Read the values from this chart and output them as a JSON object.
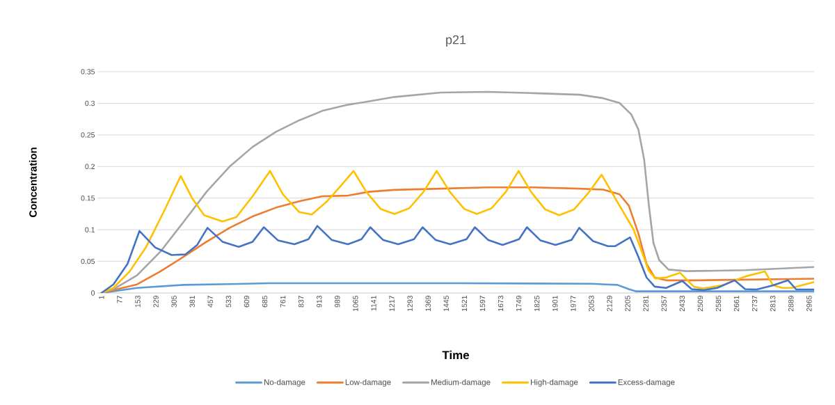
{
  "chart_data": {
    "type": "line",
    "title": "p21",
    "xlabel": "Time",
    "ylabel": "Concentration",
    "xlim": [
      -16,
      2986
    ],
    "ylim": [
      0,
      0.35
    ],
    "xticks": [
      1,
      77,
      153,
      229,
      305,
      381,
      457,
      533,
      609,
      685,
      761,
      837,
      913,
      989,
      1065,
      1141,
      1217,
      1293,
      1369,
      1445,
      1521,
      1597,
      1673,
      1749,
      1825,
      1901,
      1977,
      2053,
      2129,
      2205,
      2281,
      2357,
      2433,
      2509,
      2585,
      2661,
      2737,
      2813,
      2889,
      2965
    ],
    "yticks": [
      0,
      0.05,
      0.1,
      0.15,
      0.2,
      0.25,
      0.3,
      0.35
    ],
    "grid": "y",
    "legend": "bottom",
    "marker": "none",
    "line_style": "solid",
    "series": [
      {
        "name": "No-damage",
        "color": "#5b9bd5",
        "x": [
          1,
          150,
          344,
          538,
          700,
          1000,
          1500,
          2054,
          2113,
          2162,
          2210,
          2240,
          2500,
          2984
        ],
        "values": [
          0,
          0.008,
          0.0128,
          0.014,
          0.0154,
          0.0154,
          0.0154,
          0.0146,
          0.0135,
          0.0128,
          0.006,
          0.0026,
          0.0026,
          0.0026
        ]
      },
      {
        "name": "Low-damage",
        "color": "#ed7d31",
        "x": [
          1,
          150,
          247,
          344,
          441,
          538,
          634,
          732,
          829,
          926,
          1034,
          1120,
          1228,
          1422,
          1617,
          1811,
          2005,
          2103,
          2171,
          2210,
          2250,
          2284,
          2318,
          2366,
          2500,
          2984
        ],
        "values": [
          0,
          0.0135,
          0.034,
          0.057,
          0.081,
          0.103,
          0.121,
          0.135,
          0.145,
          0.153,
          0.154,
          0.16,
          0.163,
          0.165,
          0.167,
          0.167,
          0.165,
          0.1635,
          0.156,
          0.138,
          0.094,
          0.046,
          0.0245,
          0.02,
          0.02,
          0.0225
        ]
      },
      {
        "name": "Medium-damage",
        "color": "#a5a5a5",
        "x": [
          1,
          51,
          150,
          247,
          344,
          441,
          538,
          634,
          732,
          829,
          926,
          1023,
          1120,
          1228,
          1422,
          1617,
          1811,
          2005,
          2103,
          2171,
          2220,
          2250,
          2274,
          2294,
          2313,
          2337,
          2376,
          2453,
          2697,
          2984
        ],
        "values": [
          0,
          0.006,
          0.028,
          0.065,
          0.112,
          0.16,
          0.2,
          0.231,
          0.255,
          0.273,
          0.288,
          0.297,
          0.303,
          0.31,
          0.317,
          0.318,
          0.316,
          0.3135,
          0.308,
          0.3005,
          0.2825,
          0.2585,
          0.211,
          0.138,
          0.079,
          0.052,
          0.037,
          0.0345,
          0.036,
          0.041
        ]
      },
      {
        "name": "High-damage",
        "color": "#ffc000",
        "x": [
          1,
          51,
          119,
          187,
          265,
          333,
          382,
          431,
          508,
          566,
          634,
          707,
          761,
          829,
          882,
          946,
          1000,
          1057,
          1110,
          1170,
          1228,
          1290,
          1350,
          1405,
          1460,
          1520,
          1573,
          1635,
          1695,
          1748,
          1800,
          1860,
          1918,
          1980,
          2040,
          2096,
          2171,
          2229,
          2258,
          2292,
          2321,
          2366,
          2424,
          2482,
          2521,
          2599,
          2697,
          2780,
          2814,
          2853,
          2892,
          2984
        ],
        "values": [
          0,
          0.008,
          0.034,
          0.072,
          0.131,
          0.185,
          0.149,
          0.123,
          0.113,
          0.12,
          0.153,
          0.193,
          0.156,
          0.128,
          0.124,
          0.145,
          0.168,
          0.193,
          0.16,
          0.133,
          0.125,
          0.134,
          0.16,
          0.193,
          0.16,
          0.133,
          0.125,
          0.134,
          0.16,
          0.193,
          0.16,
          0.132,
          0.123,
          0.132,
          0.158,
          0.187,
          0.138,
          0.101,
          0.072,
          0.036,
          0.023,
          0.0245,
          0.032,
          0.01,
          0.007,
          0.012,
          0.026,
          0.034,
          0.012,
          0.008,
          0.008,
          0.017
        ]
      },
      {
        "name": "Excess-damage",
        "color": "#4472c4",
        "x": [
          1,
          51,
          110,
          160,
          226,
          295,
          353,
          402,
          445,
          508,
          576,
          634,
          681,
          741,
          809,
          868,
          905,
          965,
          1033,
          1090,
          1127,
          1180,
          1244,
          1310,
          1346,
          1400,
          1462,
          1530,
          1565,
          1620,
          1681,
          1750,
          1783,
          1840,
          1903,
          1970,
          2002,
          2060,
          2122,
          2152,
          2215,
          2250,
          2284,
          2318,
          2366,
          2434,
          2473,
          2522,
          2580,
          2653,
          2697,
          2746,
          2814,
          2877,
          2911,
          2984
        ],
        "values": [
          0,
          0.0135,
          0.046,
          0.098,
          0.072,
          0.06,
          0.061,
          0.076,
          0.103,
          0.081,
          0.073,
          0.081,
          0.104,
          0.083,
          0.077,
          0.085,
          0.106,
          0.084,
          0.077,
          0.085,
          0.104,
          0.084,
          0.077,
          0.085,
          0.104,
          0.084,
          0.077,
          0.085,
          0.104,
          0.084,
          0.076,
          0.085,
          0.104,
          0.083,
          0.076,
          0.084,
          0.103,
          0.082,
          0.074,
          0.074,
          0.088,
          0.057,
          0.0245,
          0.01,
          0.008,
          0.019,
          0.006,
          0.0045,
          0.008,
          0.02,
          0.006,
          0.0055,
          0.012,
          0.02,
          0.0055,
          0.0055
        ]
      }
    ]
  }
}
